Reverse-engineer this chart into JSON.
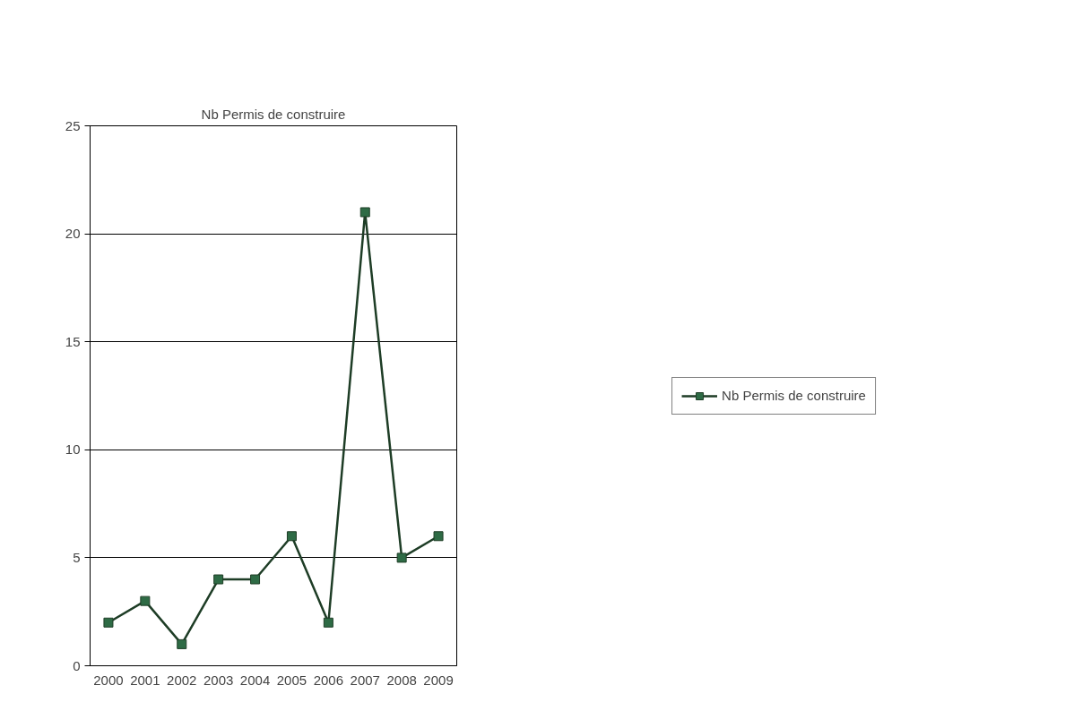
{
  "chart_data": {
    "type": "line",
    "title": "Nb Permis de construire",
    "categories": [
      "2000",
      "2001",
      "2002",
      "2003",
      "2004",
      "2005",
      "2006",
      "2007",
      "2008",
      "2009"
    ],
    "series": [
      {
        "name": "Nb Permis de construire",
        "color": "#1e3d26",
        "values": [
          2,
          3,
          1,
          4,
          4,
          6,
          2,
          21,
          5,
          6
        ]
      }
    ],
    "ylim": [
      0,
      25
    ],
    "yticks": [
      0,
      5,
      10,
      15,
      20,
      25
    ],
    "grid": "y",
    "legend": "right",
    "marker": "square",
    "line_style": "solid"
  }
}
